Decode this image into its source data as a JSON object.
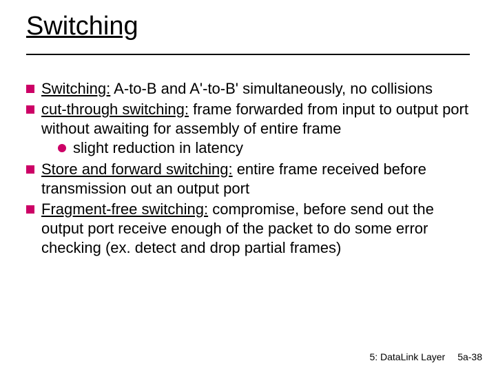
{
  "title": "Switching",
  "bullets": [
    {
      "lead": "Switching:",
      "text": " A-to-B and A'-to-B' simultaneously, no collisions"
    },
    {
      "lead": "cut-through switching:",
      "text": " frame forwarded from input to output port without awaiting for assembly of entire frame",
      "sub": "slight reduction in latency"
    },
    {
      "lead": "Store and forward switching:",
      "text": " entire frame received before transmission out an output port"
    },
    {
      "lead": "Fragment-free switching:",
      "text": " compromise, before send out the output port receive enough of the packet to do some error checking (ex. detect and drop partial frames)"
    }
  ],
  "footer": {
    "chapter": "5: DataLink Layer",
    "page": "5a-38"
  },
  "colors": {
    "bullet": "#cc0066",
    "text": "#000000",
    "background": "#ffffff"
  },
  "typography": {
    "title_fontsize": 38,
    "body_fontsize": 22,
    "footer_fontsize": 14,
    "font_family": "Comic Sans MS"
  }
}
